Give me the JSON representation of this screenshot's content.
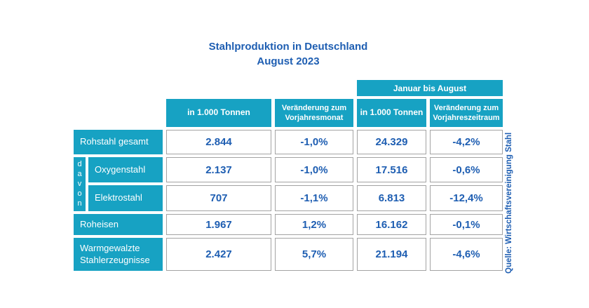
{
  "title": {
    "line1": "Stahlproduktion in Deutschland",
    "line2": "August 2023"
  },
  "colors": {
    "teal": "#17A2C3",
    "blue": "#1E5EB2",
    "cell_border": "#A3A3A3"
  },
  "table": {
    "span_header": "Januar bis August",
    "columns": [
      "in 1.000 Tonnen",
      "Veränderung zum Vorjahresmonat",
      "in 1.000 Tonnen",
      "Veränderung zum Vorjahreszeitraum"
    ],
    "davon_label": "davon",
    "rows": [
      {
        "label": "Rohstahl gesamt",
        "values": [
          "2.844",
          "-1,0%",
          "24.329",
          "-4,2%"
        ]
      },
      {
        "label": "Oxygenstahl",
        "values": [
          "2.137",
          "-1,0%",
          "17.516",
          "-0,6%"
        ]
      },
      {
        "label": "Elektrostahl",
        "values": [
          "707",
          "-1,1%",
          "6.813",
          "-12,4%"
        ]
      },
      {
        "label": "Roheisen",
        "values": [
          "1.967",
          "1,2%",
          "16.162",
          "-0,1%"
        ]
      },
      {
        "label": "Warmgewalzte Stahlerzeugnisse",
        "values": [
          "2.427",
          "5,7%",
          "21.194",
          "-4,6%"
        ]
      }
    ]
  },
  "source": "Quelle: Wirtschaftsvereinigung Stahl",
  "chart_data": {
    "type": "table",
    "title": "Stahlproduktion in Deutschland",
    "subtitle": "August 2023",
    "column_groups": [
      {
        "label": "Januar bis August",
        "columns": [
          2,
          3
        ]
      }
    ],
    "columns": [
      "in 1.000 Tonnen",
      "Veränderung zum Vorjahresmonat",
      "in 1.000 Tonnen",
      "Veränderung zum Vorjahreszeitraum"
    ],
    "row_labels": [
      "Rohstahl gesamt",
      "Oxygenstahl",
      "Elektrostahl",
      "Roheisen",
      "Warmgewalzte Stahlerzeugnisse"
    ],
    "davon_rows": [
      "Oxygenstahl",
      "Elektrostahl"
    ],
    "rows": [
      [
        2844,
        -1.0,
        24329,
        -4.2
      ],
      [
        2137,
        -1.0,
        17516,
        -0.6
      ],
      [
        707,
        -1.1,
        6813,
        -12.4
      ],
      [
        1967,
        1.2,
        16162,
        -0.1
      ],
      [
        2427,
        5.7,
        21194,
        -4.6
      ]
    ],
    "units": [
      "1.000 Tonnen",
      "%",
      "1.000 Tonnen",
      "%"
    ],
    "source": "Quelle: Wirtschaftsvereinigung Stahl"
  }
}
